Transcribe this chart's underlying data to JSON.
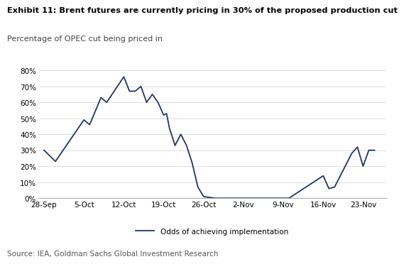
{
  "title": "Exhibit 11: Brent futures are currently pricing in 30% of the proposed production cut",
  "subtitle": "Percentage of OPEC cut being priced in",
  "source": "Source: IEA, Goldman Sachs Global Investment Research",
  "legend_label": "Odds of achieving implementation",
  "line_color": "#1f3864",
  "x_labels": [
    "28-Sep",
    "5-Oct",
    "12-Oct",
    "19-Oct",
    "26-Oct",
    "2-Nov",
    "9-Nov",
    "16-Nov",
    "23-Nov"
  ],
  "x_data": [
    0,
    2,
    7,
    8,
    10,
    11,
    14,
    15,
    16,
    17,
    18,
    19,
    20,
    21,
    21.5,
    22,
    23,
    24,
    25,
    26,
    27,
    28,
    30,
    35,
    36,
    42,
    43,
    49,
    50,
    51,
    54,
    55,
    56,
    57,
    58
  ],
  "y_data": [
    0.3,
    0.23,
    0.49,
    0.46,
    0.63,
    0.6,
    0.76,
    0.67,
    0.67,
    0.7,
    0.6,
    0.65,
    0.6,
    0.52,
    0.53,
    0.44,
    0.33,
    0.4,
    0.33,
    0.22,
    0.07,
    0.01,
    0.0,
    0.0,
    0.0,
    0.0,
    0.0,
    0.14,
    0.06,
    0.07,
    0.28,
    0.32,
    0.2,
    0.3,
    0.3
  ],
  "xlim": [
    -1,
    60
  ],
  "ylim": [
    0,
    0.8
  ],
  "background_color": "#ffffff",
  "title_fontsize": 8.2,
  "subtitle_fontsize": 8.0,
  "tick_fontsize": 7.5,
  "source_fontsize": 7.5,
  "legend_fontsize": 7.5
}
